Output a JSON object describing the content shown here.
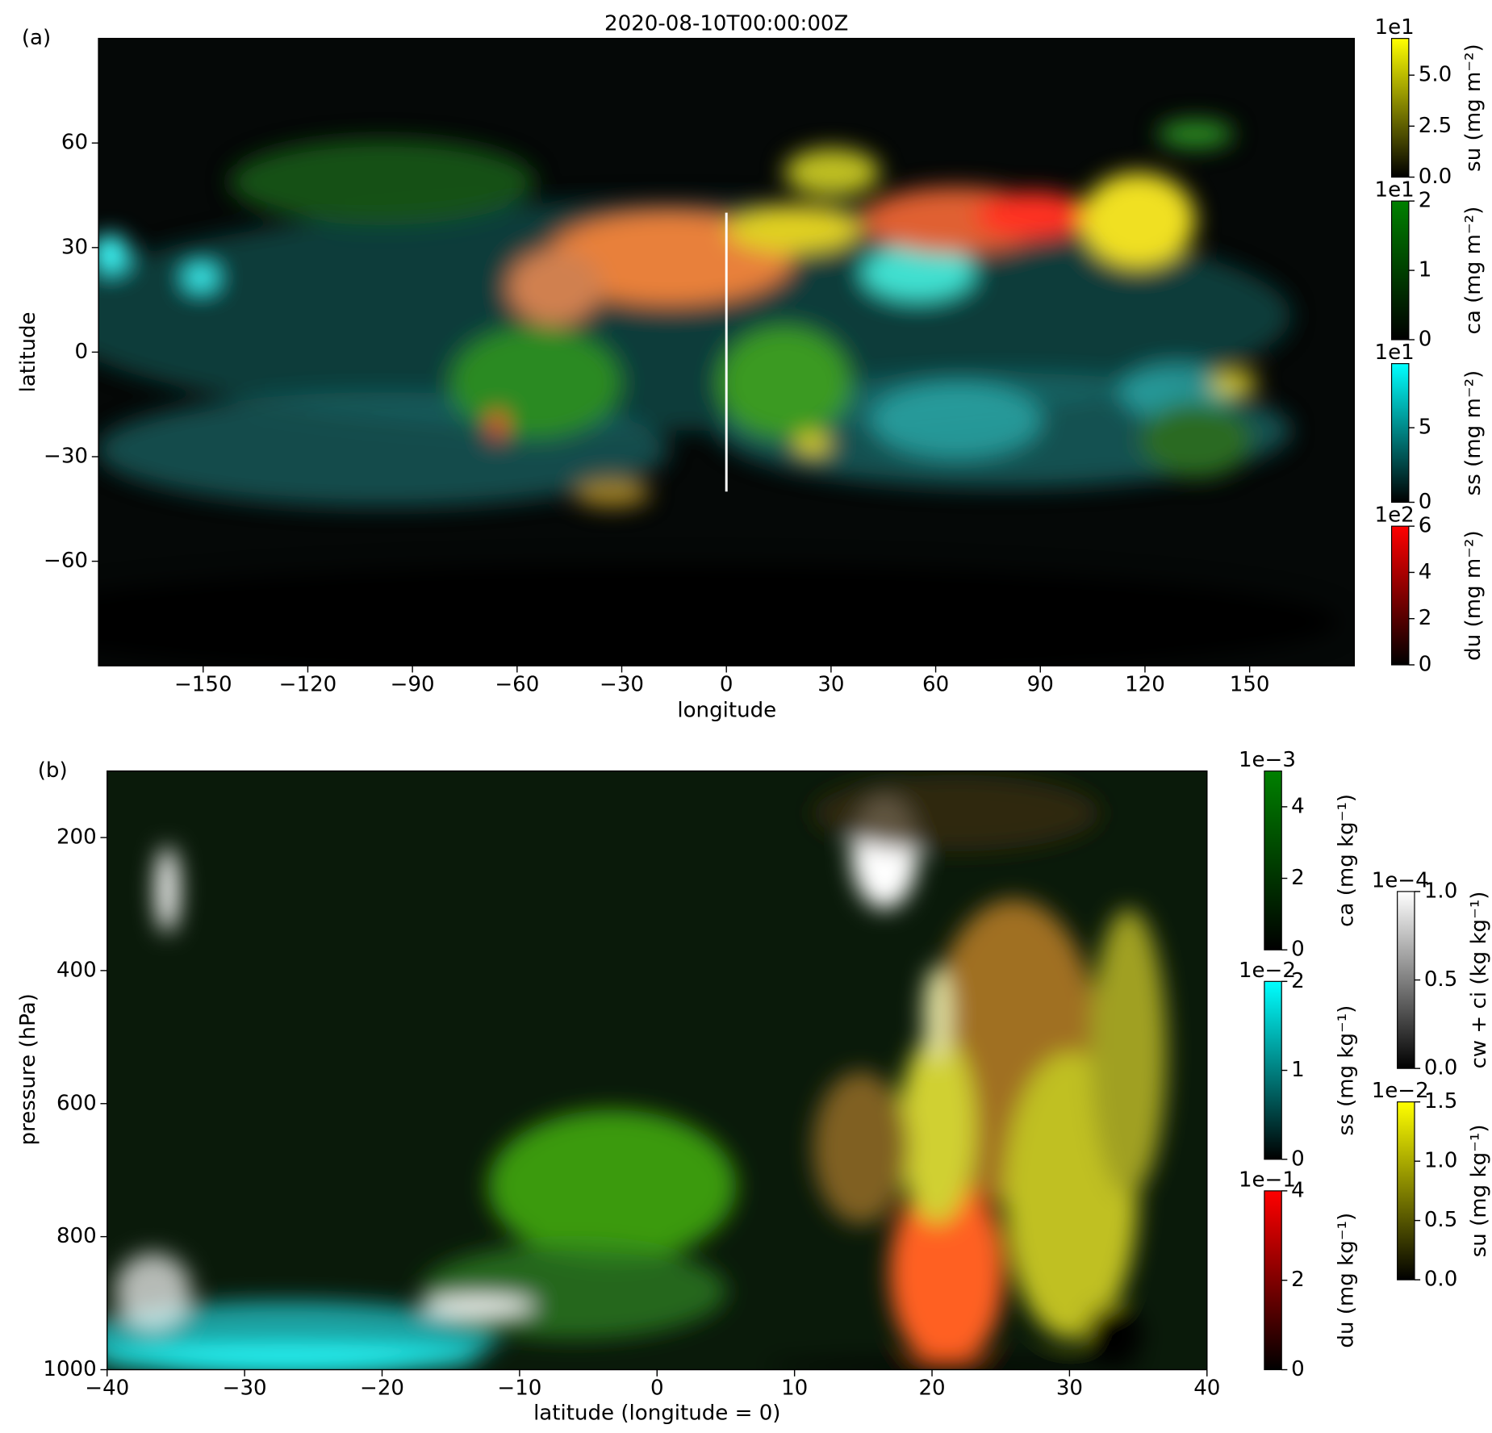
{
  "chart_data": [
    {
      "type": "map",
      "panel_label": "(a)",
      "title": "2020-08-10T00:00:00Z",
      "x_label": "longitude",
      "y_label": "latitude",
      "xlim": [
        -180,
        180
      ],
      "ylim": [
        -90,
        90
      ],
      "xticks": [
        {
          "value": -150,
          "label": "−150"
        },
        {
          "value": -120,
          "label": "−120"
        },
        {
          "value": -90,
          "label": "−90"
        },
        {
          "value": -60,
          "label": "−60"
        },
        {
          "value": -30,
          "label": "−30"
        },
        0,
        30,
        60,
        90,
        120,
        150
      ],
      "yticks": [
        60,
        30,
        0,
        {
          "value": -30,
          "label": "−30"
        },
        {
          "value": -60,
          "label": "−60"
        }
      ],
      "colorbars": [
        {
          "label": "su (mg m⁻²)",
          "exponent": "1e1",
          "color": "#ffff00",
          "lim": [
            0,
            6.8
          ],
          "ticks": [
            {
              "value": 0,
              "label": "0.0"
            },
            {
              "value": 2.5,
              "label": "2.5"
            },
            {
              "value": 5,
              "label": "5.0"
            }
          ]
        },
        {
          "label": "ca (mg m⁻²)",
          "exponent": "1e1",
          "color": "#008000",
          "lim": [
            0,
            2
          ],
          "ticks": [
            0,
            1,
            2
          ]
        },
        {
          "label": "ss (mg m⁻²)",
          "exponent": "1e1",
          "color": "#00ffff",
          "lim": [
            0,
            9.3
          ],
          "ticks": [
            0,
            5
          ]
        },
        {
          "label": "du (mg m⁻²)",
          "exponent": "1e2",
          "color": "#ff0000",
          "lim": [
            0,
            6
          ],
          "ticks": [
            0,
            2,
            4,
            6
          ]
        }
      ]
    },
    {
      "type": "heatmap",
      "panel_label": "(b)",
      "x_label": "latitude (longitude = 0)",
      "y_label": "pressure (hPa)",
      "xlim": [
        -40,
        40
      ],
      "ylim": [
        1000,
        100
      ],
      "xticks": [
        {
          "value": -40,
          "label": "−40"
        },
        {
          "value": -30,
          "label": "−30"
        },
        {
          "value": -20,
          "label": "−20"
        },
        {
          "value": -10,
          "label": "−10"
        },
        0,
        10,
        20,
        30,
        40
      ],
      "yticks": [
        200,
        400,
        600,
        800,
        1000
      ],
      "colorbars": [
        {
          "label": "ca (mg kg⁻¹)",
          "exponent": "1e−3",
          "color": "#008000",
          "lim": [
            0,
            5
          ],
          "ticks": [
            0,
            2,
            4
          ]
        },
        {
          "label": "ss (mg kg⁻¹)",
          "exponent": "1e−2",
          "color": "#00ffff",
          "lim": [
            0,
            2
          ],
          "ticks": [
            0,
            1,
            2
          ]
        },
        {
          "label": "du (mg kg⁻¹)",
          "exponent": "1e−1",
          "color": "#ff0000",
          "lim": [
            0,
            4
          ],
          "ticks": [
            0,
            2,
            4
          ]
        },
        {
          "label": "cw + ci (kg kg⁻¹)",
          "exponent": "1e−4",
          "color": "#ffffff",
          "lim": [
            0,
            1
          ],
          "ticks": [
            {
              "value": 0,
              "label": "0.0"
            },
            {
              "value": 0.5,
              "label": "0.5"
            },
            {
              "value": 1,
              "label": "1.0"
            }
          ]
        },
        {
          "label": "su (mg kg⁻¹)",
          "exponent": "1e−2",
          "color": "#ffff00",
          "lim": [
            0,
            1.5
          ],
          "ticks": [
            {
              "value": 0,
              "label": "0.0"
            },
            {
              "value": 0.5,
              "label": "0.5"
            },
            {
              "value": 1,
              "label": "1.0"
            },
            {
              "value": 1.5,
              "label": "1.5"
            }
          ]
        }
      ]
    }
  ]
}
